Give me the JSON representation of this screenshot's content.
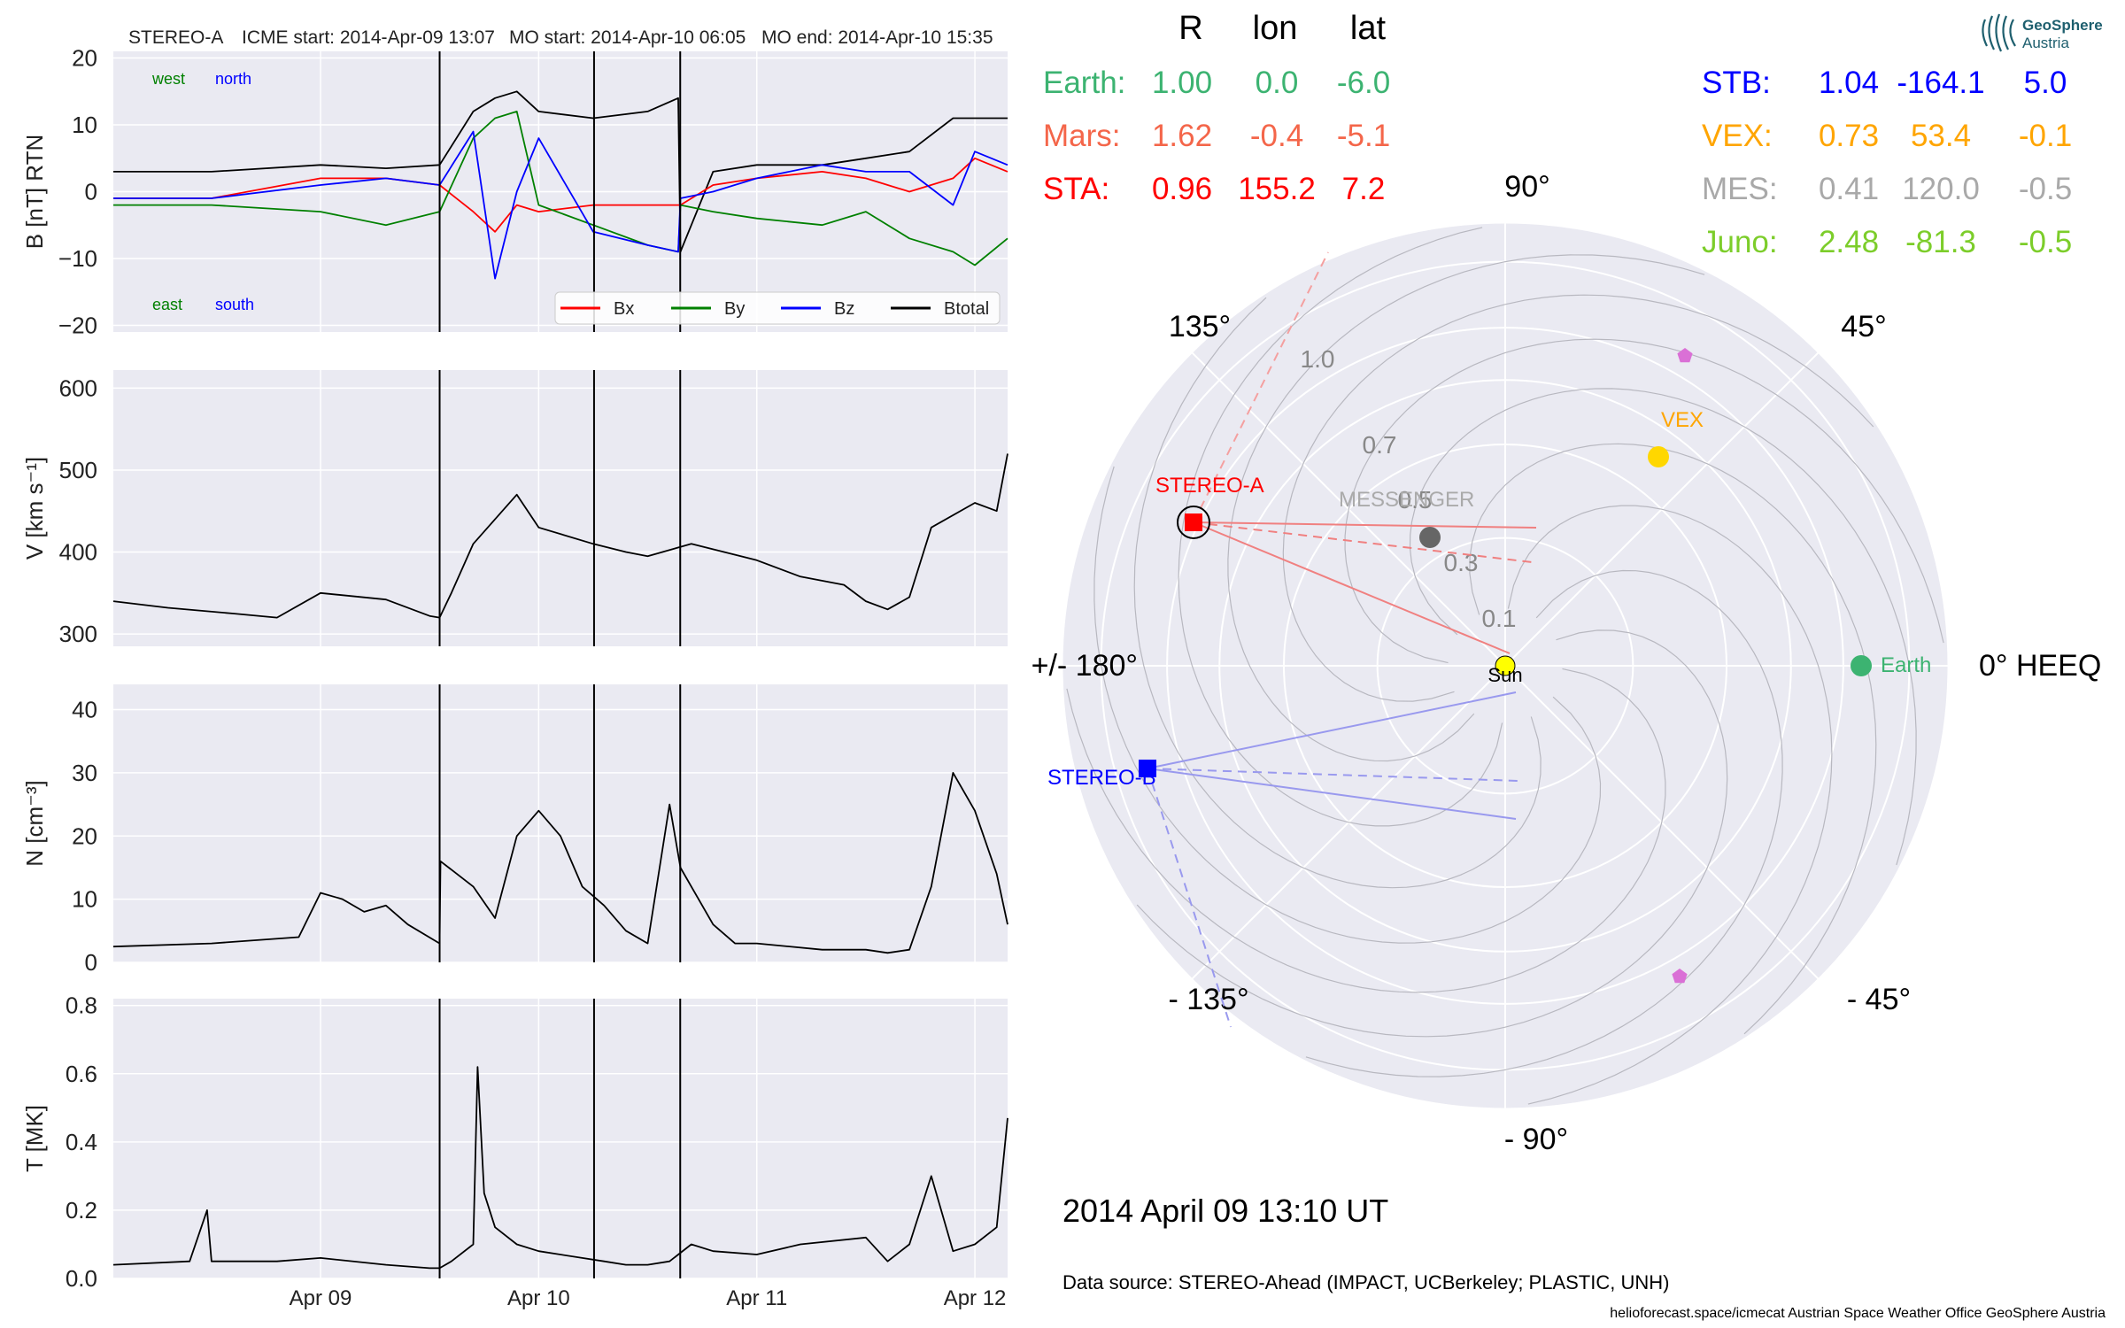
{
  "header": {
    "spacecraft": "STEREO-A",
    "icme_start": "ICME start: 2014-Apr-09 13:07",
    "mo_start": "MO start: 2014-Apr-10 06:05",
    "mo_end": "MO end: 2014-Apr-10 15:35"
  },
  "colors": {
    "bx": "#ff0000",
    "by": "#008000",
    "bz": "#0000ff",
    "btotal": "#000000",
    "earth": "#3cb371",
    "mars": "#f4664a",
    "sta": "#ff0000",
    "stb": "#0000ff",
    "vex": "#ffa500",
    "mes": "#a9a9a9",
    "juno": "#7ccd2a",
    "panel_bg": "#eaeaf2"
  },
  "position_table": {
    "headers": [
      "R",
      "lon",
      "lat"
    ],
    "left_rows": [
      {
        "name": "Earth:",
        "r": "1.00",
        "lon": "0.0",
        "lat": "-6.0",
        "color": "#3cb371"
      },
      {
        "name": "Mars:",
        "r": "1.62",
        "lon": "-0.4",
        "lat": "-5.1",
        "color": "#f4664a"
      },
      {
        "name": "STA:",
        "r": "0.96",
        "lon": "155.2",
        "lat": "7.2",
        "color": "#ff0000"
      }
    ],
    "right_rows": [
      {
        "name": "STB:",
        "r": "1.04",
        "lon": "-164.1",
        "lat": "5.0",
        "color": "#0000ff"
      },
      {
        "name": "VEX:",
        "r": "0.73",
        "lon": "53.4",
        "lat": "-0.1",
        "color": "#ffa500"
      },
      {
        "name": "MES:",
        "r": "0.41",
        "lon": "120.0",
        "lat": "-0.5",
        "color": "#a9a9a9"
      },
      {
        "name": "Juno:",
        "r": "2.48",
        "lon": "-81.3",
        "lat": "-0.5",
        "color": "#7ccd2a"
      }
    ]
  },
  "logo": {
    "line1": "GeoSphere",
    "line2": "Austria"
  },
  "polar": {
    "angle_labels": [
      "90°",
      "45°",
      "0° HEEQ",
      "- 45°",
      "- 90°",
      "- 135°",
      "+/- 180°",
      "135°"
    ],
    "radial_labels": [
      "0.1",
      "0.3",
      "0.5",
      "0.7",
      "1.0"
    ],
    "bodies": [
      {
        "label": "Sun",
        "r": 0.0,
        "lon": 0.0
      },
      {
        "label": "Earth",
        "r": 1.0,
        "lon": 0.0
      },
      {
        "label": "VEX",
        "r": 0.73,
        "lon": 53.4
      },
      {
        "label": "MESSENGER",
        "r": 0.41,
        "lon": 120.0
      },
      {
        "label": "STEREO-A",
        "r": 0.96,
        "lon": 155.2
      },
      {
        "label": "STEREO-B",
        "r": 1.04,
        "lon": -164.1
      }
    ]
  },
  "timestamp": "2014 April 09  13:10 UT",
  "data_source": "Data source: STEREO-Ahead (IMPACT, UCBerkeley; PLASTIC, UNH)",
  "footer": "helioforecast.space/icmecat   Austrian Space Weather Office   GeoSphere Austria",
  "chart_data": [
    {
      "type": "line",
      "title": "STEREO-A    ICME start: 2014-Apr-09 13:07    MO start: 2014-Apr-10 06:05    MO end: 2014-Apr-10 15:35",
      "ylabel": "B [nT] RTN",
      "ylim": [
        -21,
        21
      ],
      "yticks": [
        20,
        10,
        0,
        -10,
        -20
      ],
      "annotations": [
        "west",
        "north",
        "east",
        "south"
      ],
      "legend": [
        "Bx",
        "By",
        "Bz",
        "Btotal"
      ],
      "legend_position": "lower-right",
      "xlim_days": [
        8.05,
        12.15
      ],
      "event_lines_days": [
        9.546,
        10.254,
        10.649
      ],
      "series": [
        {
          "name": "Btotal",
          "x": [
            8.05,
            8.5,
            9.0,
            9.3,
            9.546,
            9.7,
            9.8,
            9.9,
            10.0,
            10.25,
            10.5,
            10.64,
            10.65,
            10.8,
            11.0,
            11.3,
            11.5,
            11.7,
            11.9,
            12.0,
            12.15
          ],
          "values": [
            3,
            3,
            4,
            3.5,
            4,
            12,
            14,
            15,
            12,
            11,
            12,
            14,
            -9,
            3,
            4,
            4,
            5,
            6,
            11,
            11,
            11
          ]
        },
        {
          "name": "Bx",
          "x": [
            8.05,
            8.5,
            9.0,
            9.3,
            9.546,
            9.7,
            9.8,
            9.9,
            10.0,
            10.25,
            10.5,
            10.64,
            10.65,
            10.8,
            11.0,
            11.3,
            11.5,
            11.7,
            11.9,
            12.0,
            12.15
          ],
          "values": [
            -1,
            -1,
            2,
            2,
            1,
            -3,
            -6,
            -2,
            -3,
            -2,
            -2,
            -2,
            -2,
            1,
            2,
            3,
            2,
            0,
            2,
            5,
            3
          ]
        },
        {
          "name": "By",
          "x": [
            8.05,
            8.5,
            9.0,
            9.3,
            9.546,
            9.7,
            9.8,
            9.9,
            10.0,
            10.25,
            10.5,
            10.64,
            10.65,
            10.8,
            11.0,
            11.3,
            11.5,
            11.7,
            11.9,
            12.0,
            12.15
          ],
          "values": [
            -2,
            -2,
            -3,
            -5,
            -3,
            8,
            11,
            12,
            -2,
            -5,
            -8,
            -9,
            -2,
            -3,
            -4,
            -5,
            -3,
            -7,
            -9,
            -11,
            -7
          ]
        },
        {
          "name": "Bz",
          "x": [
            8.05,
            8.5,
            9.0,
            9.3,
            9.546,
            9.7,
            9.8,
            9.9,
            10.0,
            10.25,
            10.5,
            10.64,
            10.65,
            10.8,
            11.0,
            11.3,
            11.5,
            11.7,
            11.9,
            12.0,
            12.15
          ],
          "values": [
            -1,
            -1,
            1,
            2,
            1,
            9,
            -13,
            0,
            8,
            -6,
            -8,
            -9,
            -1,
            0,
            2,
            4,
            3,
            3,
            -2,
            6,
            4
          ]
        }
      ]
    },
    {
      "type": "line",
      "ylabel": "V [km s⁻¹]",
      "ylim": [
        285,
        622
      ],
      "yticks": [
        600,
        500,
        400,
        300
      ],
      "series": [
        {
          "name": "V",
          "x": [
            8.05,
            8.3,
            8.6,
            8.8,
            9.0,
            9.3,
            9.5,
            9.546,
            9.6,
            9.7,
            9.9,
            10.0,
            10.25,
            10.4,
            10.5,
            10.7,
            11.0,
            11.2,
            11.4,
            11.5,
            11.6,
            11.7,
            11.8,
            12.0,
            12.1,
            12.15
          ],
          "values": [
            340,
            332,
            325,
            320,
            350,
            342,
            322,
            320,
            350,
            410,
            470,
            430,
            410,
            400,
            395,
            410,
            390,
            370,
            360,
            340,
            330,
            345,
            430,
            460,
            450,
            520
          ]
        }
      ]
    },
    {
      "type": "line",
      "ylabel": "N [cm⁻³]",
      "ylim": [
        0,
        44
      ],
      "yticks": [
        40,
        30,
        20,
        10,
        0
      ],
      "series": [
        {
          "name": "N",
          "x": [
            8.05,
            8.5,
            8.9,
            9.0,
            9.1,
            9.2,
            9.3,
            9.4,
            9.546,
            9.55,
            9.7,
            9.8,
            9.9,
            10.0,
            10.1,
            10.2,
            10.3,
            10.4,
            10.5,
            10.6,
            10.65,
            10.7,
            10.8,
            10.9,
            11.0,
            11.3,
            11.5,
            11.6,
            11.7,
            11.8,
            11.9,
            12.0,
            12.1,
            12.15
          ],
          "values": [
            2.5,
            3,
            4,
            11,
            10,
            8,
            9,
            6,
            3,
            16,
            12,
            7,
            20,
            24,
            20,
            12,
            9,
            5,
            3,
            25,
            15,
            12,
            6,
            3,
            3,
            2,
            2,
            1.5,
            2,
            12,
            30,
            24,
            14,
            6
          ]
        }
      ]
    },
    {
      "type": "line",
      "ylabel": "T [MK]",
      "ylim": [
        0,
        0.82
      ],
      "yticks": [
        0.8,
        0.6,
        0.4,
        0.2,
        0.0
      ],
      "series": [
        {
          "name": "T",
          "x": [
            8.05,
            8.4,
            8.48,
            8.5,
            8.8,
            9.0,
            9.3,
            9.5,
            9.546,
            9.6,
            9.7,
            9.72,
            9.75,
            9.8,
            9.9,
            10.0,
            10.2,
            10.3,
            10.4,
            10.5,
            10.6,
            10.7,
            10.8,
            11.0,
            11.2,
            11.5,
            11.6,
            11.7,
            11.8,
            11.9,
            12.0,
            12.1,
            12.15
          ],
          "values": [
            0.04,
            0.05,
            0.2,
            0.05,
            0.05,
            0.06,
            0.04,
            0.03,
            0.03,
            0.05,
            0.1,
            0.62,
            0.25,
            0.15,
            0.1,
            0.08,
            0.06,
            0.05,
            0.04,
            0.04,
            0.05,
            0.1,
            0.08,
            0.07,
            0.1,
            0.12,
            0.05,
            0.1,
            0.3,
            0.08,
            0.1,
            0.15,
            0.47
          ]
        }
      ]
    }
  ],
  "x_tick_labels": [
    {
      "label": "Apr 09",
      "day": 9
    },
    {
      "label": "Apr 10",
      "day": 10
    },
    {
      "label": "Apr 11",
      "day": 11
    },
    {
      "label": "Apr 12",
      "day": 12
    }
  ]
}
